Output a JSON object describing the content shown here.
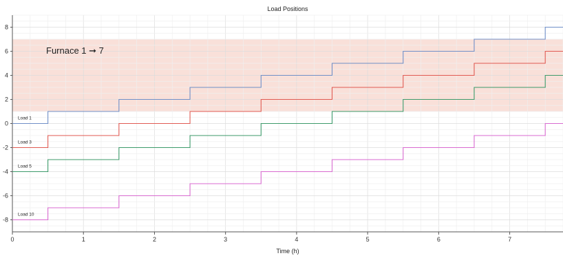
{
  "chart_data": {
    "type": "line",
    "title": "Load Positions",
    "xlabel": "Time (h)",
    "ylabel": "",
    "xlim": [
      0,
      7.75
    ],
    "ylim": [
      -9,
      9
    ],
    "x_ticks": [
      0,
      1,
      2,
      3,
      4,
      5,
      6,
      7
    ],
    "y_ticks": [
      -8,
      -6,
      -4,
      -2,
      0,
      2,
      4,
      6,
      8
    ],
    "grid": true,
    "step": true,
    "highlight_band": {
      "y_range": [
        1,
        7
      ],
      "color": "#f9e0d9"
    },
    "annotation": {
      "text": "Furnace 1",
      "arrow": "➞",
      "value": "7"
    },
    "series": [
      {
        "name": "Load 1",
        "color": "#6f8fc8",
        "x": [
          0,
          0.5,
          1.5,
          2.5,
          3.5,
          4.5,
          5.5,
          6.5,
          7.5,
          7.75
        ],
        "y": [
          0,
          1,
          2,
          3,
          4,
          5,
          6,
          7,
          8,
          8
        ]
      },
      {
        "name": "Load 3",
        "color": "#e05a52",
        "x": [
          0,
          0.5,
          1.5,
          2.5,
          3.5,
          4.5,
          5.5,
          6.5,
          7.5,
          7.75
        ],
        "y": [
          -2,
          -1,
          0,
          1,
          2,
          3,
          4,
          5,
          6,
          6
        ]
      },
      {
        "name": "Load 5",
        "color": "#3c9a6a",
        "x": [
          0,
          0.5,
          1.5,
          2.5,
          3.5,
          4.5,
          5.5,
          6.5,
          7.5,
          7.75
        ],
        "y": [
          -4,
          -3,
          -2,
          -1,
          0,
          1,
          2,
          3,
          4,
          4
        ]
      },
      {
        "name": "Load 10",
        "color": "#d86ad0",
        "x": [
          0,
          0.5,
          1.5,
          2.5,
          3.5,
          4.5,
          5.5,
          6.5,
          7.5,
          7.75
        ],
        "y": [
          -8,
          -7,
          -6,
          -5,
          -4,
          -3,
          -2,
          -1,
          0,
          0
        ]
      }
    ]
  }
}
